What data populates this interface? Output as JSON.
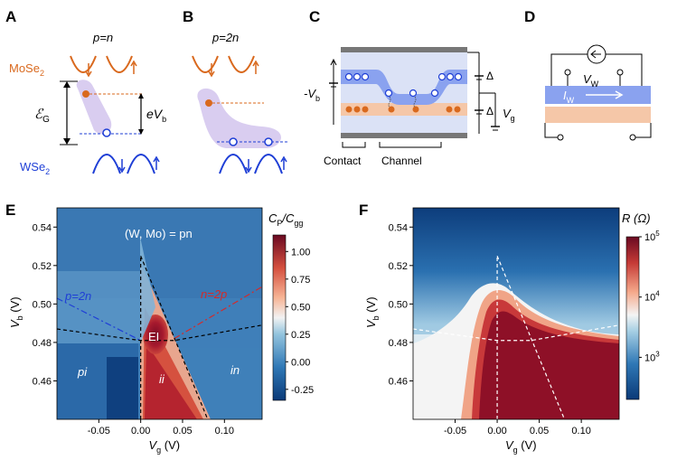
{
  "panels": {
    "A": {
      "label": "A",
      "title": "p=n",
      "mose2": "MoSe",
      "mose2_sub": "2",
      "wse2": "WSe",
      "wse2_sub": "2",
      "energy": "ℰ",
      "energy_sub": "G",
      "bias": "eV",
      "bias_sub": "b"
    },
    "B": {
      "label": "B",
      "title": "p=2n"
    },
    "C": {
      "label": "C",
      "vb": "-V",
      "vb_sub": "b",
      "delta1": "Δ",
      "delta2": "Δ",
      "vg": "V",
      "vg_sub": "g",
      "contact": "Contact",
      "channel": "Channel"
    },
    "D": {
      "label": "D",
      "vw": "V",
      "vw_sub": "W",
      "iw": "I",
      "iw_sub": "W"
    },
    "E": {
      "label": "E",
      "cbar_title": "C",
      "cbar_sub1": "P",
      "cbar_mid": "/C",
      "cbar_sub2": "gg",
      "annot_top": "(W, Mo) = pn",
      "annot_p2n": "p=2n",
      "annot_n2p": "n=2p",
      "region_ei": "EI",
      "region_pi": "pi",
      "region_ii": "ii",
      "region_in": "in"
    },
    "F": {
      "label": "F",
      "cbar_title": "R (Ω)"
    }
  },
  "chart_data": [
    {
      "type": "heatmap",
      "panel": "E",
      "xlabel": "V_g (V)",
      "ylabel": "V_b (V)",
      "xlim": [
        -0.1,
        0.145
      ],
      "ylim": [
        0.44,
        0.55
      ],
      "xticks": [
        -0.05,
        0.0,
        0.05,
        0.1
      ],
      "xtick_labels": [
        "-0.05",
        "0.00",
        "0.05",
        "0.10"
      ],
      "yticks": [
        0.46,
        0.48,
        0.5,
        0.52,
        0.54
      ],
      "ytick_labels": [
        "0.46",
        "0.48",
        "0.50",
        "0.52",
        "0.54"
      ],
      "colorbar": {
        "label": "C_P/C_gg",
        "min": -0.35,
        "max": 1.15,
        "ticks": [
          1.0,
          0.75,
          0.5,
          0.25,
          0.0,
          -0.25
        ],
        "tick_labels": [
          "1.00",
          "0.75",
          "0.50",
          "0.25",
          "0.00",
          "-0.25"
        ],
        "colormap": "RdBu_r"
      },
      "lines": [
        {
          "name": "p=2n",
          "style": "dash-dot",
          "color": "#1f3fd6",
          "points": [
            [
              -0.1,
              0.503
            ],
            [
              0.0,
              0.481
            ]
          ]
        },
        {
          "name": "n=2p",
          "style": "dash-dot",
          "color": "#d42a2a",
          "points": [
            [
              0.04,
              0.482
            ],
            [
              0.145,
              0.509
            ]
          ]
        },
        {
          "style": "dashed",
          "color": "#000000",
          "points": [
            [
              -0.1,
              0.487
            ],
            [
              0.0,
              0.481
            ],
            [
              0.04,
              0.481
            ],
            [
              0.145,
              0.489
            ]
          ]
        },
        {
          "style": "dashed",
          "color": "#000000",
          "points": [
            [
              0.0,
              0.44
            ],
            [
              0.0,
              0.525
            ]
          ]
        },
        {
          "style": "dashed",
          "color": "#000000",
          "points": [
            [
              0.0,
              0.525
            ],
            [
              0.08,
              0.44
            ]
          ]
        }
      ]
    },
    {
      "type": "heatmap",
      "panel": "F",
      "xlabel": "V_g (V)",
      "ylabel": "V_b (V)",
      "xlim": [
        -0.1,
        0.145
      ],
      "ylim": [
        0.44,
        0.55
      ],
      "xticks": [
        -0.05,
        0.0,
        0.05,
        0.1
      ],
      "xtick_labels": [
        "-0.05",
        "0.00",
        "0.05",
        "0.10"
      ],
      "yticks": [
        0.46,
        0.48,
        0.5,
        0.52,
        0.54
      ],
      "ytick_labels": [
        "0.46",
        "0.48",
        "0.50",
        "0.52",
        "0.54"
      ],
      "colorbar": {
        "label": "R (Ω)",
        "scale": "log",
        "min": 200,
        "max": 100000,
        "ticks": [
          100000,
          10000,
          1000
        ],
        "tick_labels": [
          "10",
          "10",
          "10"
        ],
        "tick_exponents": [
          "5",
          "4",
          "3"
        ],
        "colormap": "RdBu_r"
      },
      "lines": [
        {
          "style": "dashed",
          "color": "#ffffff",
          "points": [
            [
              -0.1,
              0.487
            ],
            [
              0.0,
              0.481
            ],
            [
              0.04,
              0.481
            ],
            [
              0.145,
              0.489
            ]
          ]
        },
        {
          "style": "dashed",
          "color": "#ffffff",
          "points": [
            [
              0.0,
              0.44
            ],
            [
              0.0,
              0.525
            ]
          ]
        },
        {
          "style": "dashed",
          "color": "#ffffff",
          "points": [
            [
              0.0,
              0.525
            ],
            [
              0.08,
              0.44
            ]
          ]
        }
      ]
    }
  ],
  "colors": {
    "orange": "#d9691e",
    "blue": "#1f3fd6",
    "lavender": "#d9cdf0",
    "light_blue": "#cfd8f5",
    "orange_layer": "#f5c7a8",
    "blue_layer": "#8aa2ef"
  }
}
